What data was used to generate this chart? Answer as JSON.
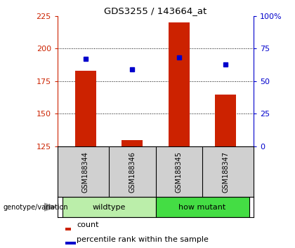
{
  "title": "GDS3255 / 143664_at",
  "categories": [
    "GSM188344",
    "GSM188346",
    "GSM188345",
    "GSM188347"
  ],
  "bar_values": [
    183,
    130,
    220,
    165
  ],
  "bar_base": 125,
  "blue_markers": [
    192,
    184,
    193,
    188
  ],
  "bar_color": "#cc2200",
  "marker_color": "#0000cc",
  "left_ylim": [
    125,
    225
  ],
  "left_yticks": [
    125,
    150,
    175,
    200,
    225
  ],
  "right_ylim": [
    0,
    100
  ],
  "right_yticks": [
    0,
    25,
    50,
    75,
    100
  ],
  "right_yticklabels": [
    "0",
    "25",
    "50",
    "75",
    "100%"
  ],
  "groups": [
    {
      "label": "wildtype",
      "indices": [
        0,
        1
      ],
      "color": "#bbeeaa"
    },
    {
      "label": "how mutant",
      "indices": [
        2,
        3
      ],
      "color": "#44dd44"
    }
  ],
  "legend_count_label": "count",
  "legend_pct_label": "percentile rank within the sample",
  "genotype_label": "genotype/variation",
  "background_color": "#ffffff",
  "plot_bg": "#ffffff",
  "left_tick_color": "#cc2200",
  "right_tick_color": "#0000cc",
  "bar_width": 0.45,
  "label_box_color": "#d0d0d0",
  "xlim": [
    -0.6,
    3.6
  ]
}
